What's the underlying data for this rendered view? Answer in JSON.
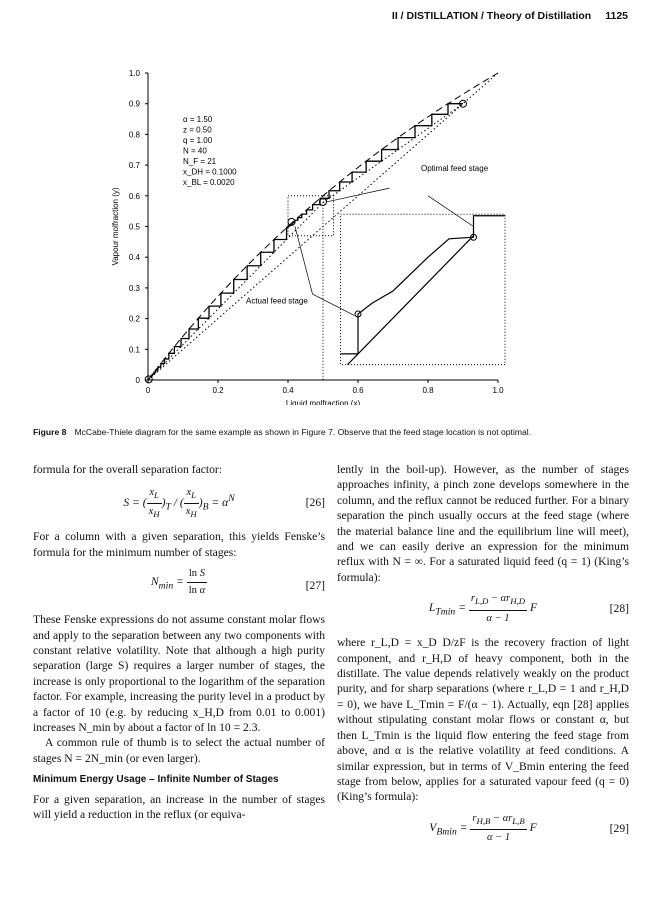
{
  "header": {
    "running_title": "II / DISTILLATION / Theory of Distillation",
    "page_number": "1125"
  },
  "chart_data": {
    "type": "line",
    "title": "",
    "xlabel": "Liquid molfraction (x)",
    "ylabel": "Vapour molfraction (y)",
    "xlim": [
      0,
      1
    ],
    "ylim": [
      0,
      1
    ],
    "x_ticks": [
      "0",
      "0.2",
      "0.4",
      "0.6",
      "0.8",
      "1.0"
    ],
    "y_ticks": [
      "0",
      "0.1",
      "0.2",
      "0.3",
      "0.4",
      "0.5",
      "0.6",
      "0.7",
      "0.8",
      "0.9",
      "1.0"
    ],
    "parameters": [
      "α = 1.50",
      "z = 0.50",
      "q = 1.00",
      "N = 40",
      "N_F = 21",
      "x_DH = 0.1000",
      "x_BL = 0.0020"
    ],
    "alpha": 1.5,
    "z": 0.5,
    "q": 1.0,
    "N": 40,
    "NF": 21,
    "xD": 0.9,
    "xB": 0.002,
    "feed_point": [
      0.41,
      0.515
    ],
    "annotations": [
      "Optimal feed stage",
      "Actual feed stage"
    ],
    "series": [
      {
        "kind": "equilibrium curve"
      },
      {
        "kind": "operating lines"
      },
      {
        "kind": "diagonal y=x"
      },
      {
        "kind": "stage steps"
      }
    ],
    "inset": "enlarged view of feed region",
    "grid": false
  },
  "caption": {
    "label": "Figure 8",
    "text": "McCabe-Thiele diagram for the same example as shown in Figure 7. Observe that the feed stage location is not optimal."
  },
  "left": {
    "p1": "formula for the overall separation factor:",
    "eq26": "[26]",
    "p2": "For a column with a given separation, this yields Fenske’s formula for the minimum number of stages:",
    "eq27": "[27]",
    "p3": "These Fenske expressions do not assume constant molar flows and apply to the separation between any two components with constant relative volatility. Note that although a high purity separation (large S) requires a larger number of stages, the increase is only proportional to the logarithm of the separation factor. For example, increasing the purity level in a product by a factor of 10 (e.g. by reducing x_H,D from 0.01 to 0.001) increases N_min by about a factor of ln 10 = 2.3.",
    "p4": "A common rule of thumb is to select the actual number of stages N = 2N_min (or even larger).",
    "heading": "Minimum Energy Usage – Infinite Number of Stages",
    "p5": "For a given separation, an increase in the number of stages will yield a reduction in the reflux (or equiva-"
  },
  "right": {
    "p1": "lently in the boil-up). However, as the number of stages approaches infinity, a pinch zone develops somewhere in the column, and the reflux cannot be reduced further. For a binary separation the pinch usually occurs at the feed stage (where the material balance line and the equilibrium line will meet), and we can easily derive an expression for the minimum reflux with N = ∞. For a saturated liquid feed (q = 1) (King’s formula):",
    "eq28": "[28]",
    "p2": "where r_L,D = x_D D/zF is the recovery fraction of light component, and r_H,D of heavy component, both in the distillate. The value depends relatively weakly on the product purity, and for sharp separations (where r_L,D = 1 and r_H,D = 0), we have L_Tmin = F/(α − 1). Actually, eqn [28] applies without stipulating constant molar flows or constant α, but then L_Tmin is the liquid flow entering the feed stage from above, and α is the relative volatility at feed conditions. A similar expression, but in terms of V_Bmin entering the feed stage from below, applies for a saturated vapour feed (q = 0) (King’s formula):",
    "eq29": "[29]"
  }
}
